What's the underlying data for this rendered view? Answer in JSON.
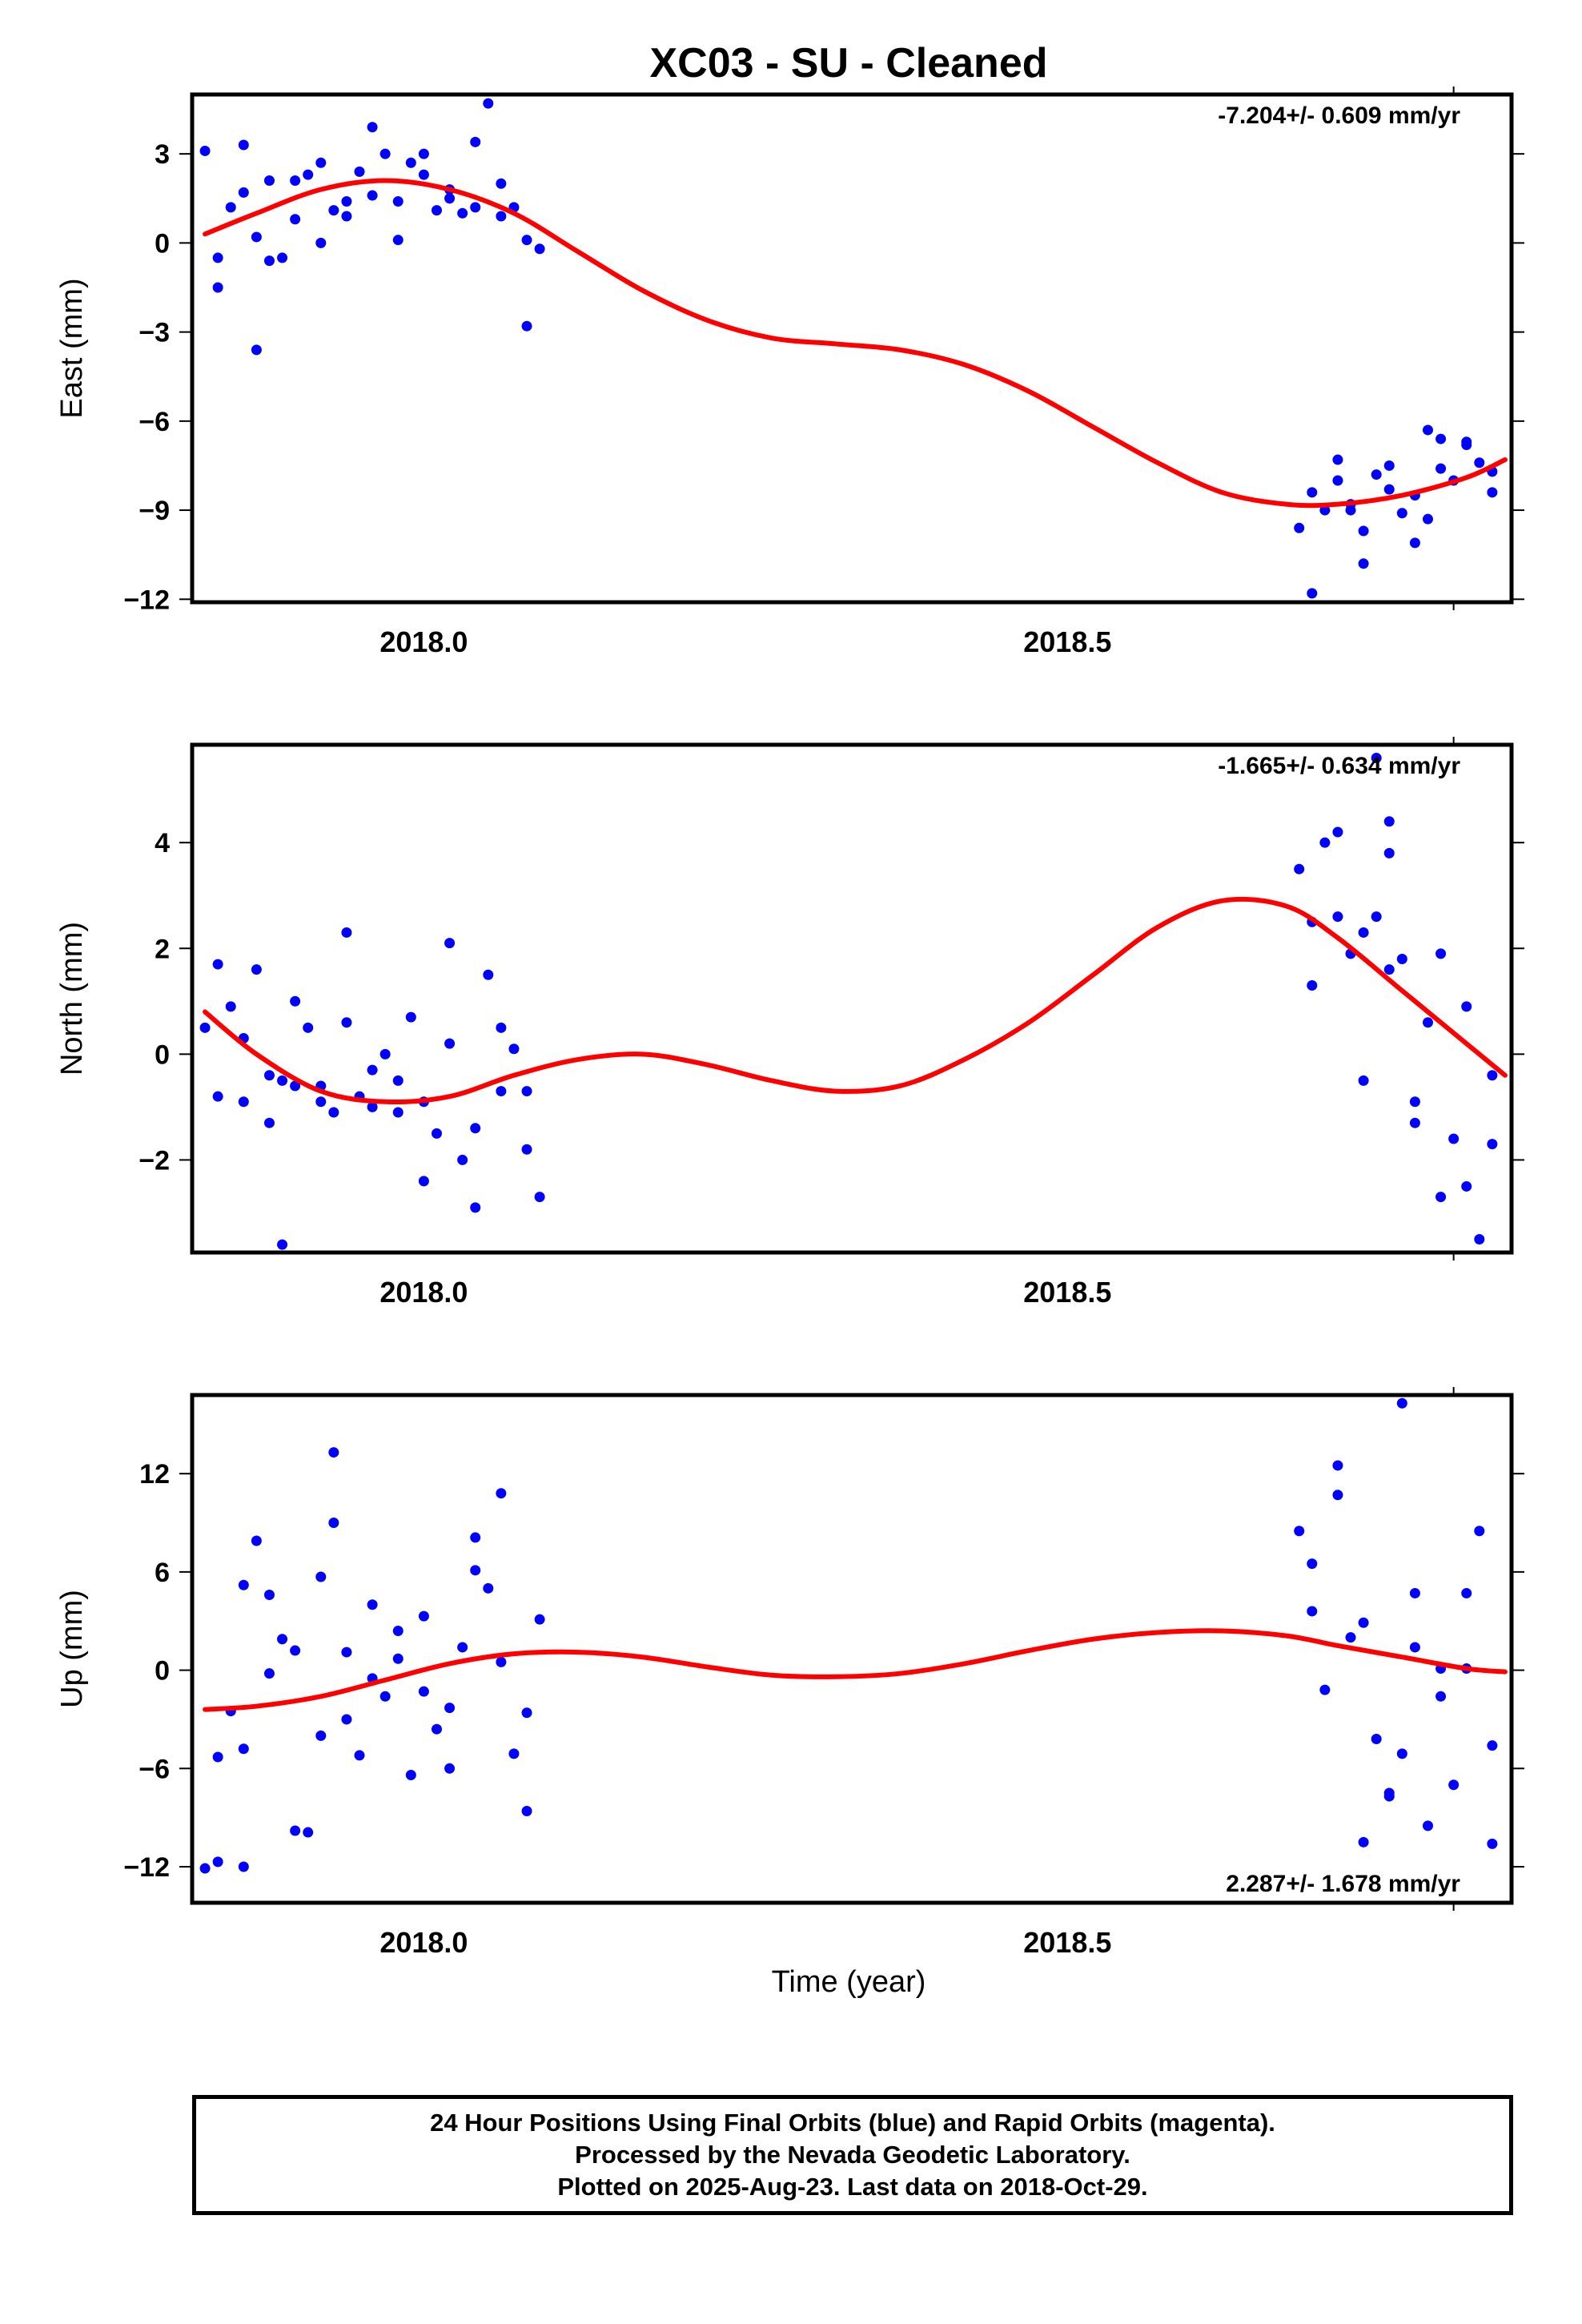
{
  "title": "XC03  - SU - Cleaned",
  "xlabel": "Time (year)",
  "colors": {
    "final_orbit": "#0000ff",
    "rapid_orbit": "#ff00ff",
    "model": "#ff0000",
    "axis": "#000000"
  },
  "caption": [
    "24 Hour Positions Using Final Orbits (blue) and Rapid Orbits (magenta).",
    "Processed by the Nevada Geodetic Laboratory.",
    "Plotted on 2025-Aug-23. Last data on 2018-Oct-29."
  ],
  "chart_data": [
    {
      "type": "scatter",
      "ylabel": "East (mm)",
      "rate_label": "-7.204+/- 0.609 mm/yr",
      "rate_position": "top-right",
      "xlim": [
        2017.82,
        2018.845
      ],
      "ylim": [
        -12.1,
        5.0
      ],
      "xticks": [
        2018.0,
        2018.5
      ],
      "xtick_labels": [
        "2018.0",
        "2018.5"
      ],
      "yticks": [
        -12,
        -9,
        -6,
        -3,
        0,
        3
      ],
      "ytick_labels": [
        "−12",
        "−9",
        "−6",
        "−3",
        "0",
        "3"
      ],
      "grid": false,
      "series": [
        {
          "role": "final",
          "x": [
            2017.83,
            2017.84,
            2017.85,
            2017.86,
            2017.87,
            2017.88,
            2017.89,
            2017.9,
            2017.91,
            2017.92,
            2017.93,
            2017.94,
            2017.95,
            2017.96,
            2017.97,
            2017.98,
            2017.99,
            2018.0,
            2018.01,
            2018.02,
            2018.03,
            2018.04,
            2018.05,
            2018.06,
            2018.07,
            2018.08,
            2018.09,
            2017.84,
            2017.86,
            2017.88,
            2017.9,
            2017.92,
            2017.94,
            2017.96,
            2017.98,
            2018.0,
            2018.02,
            2018.04,
            2018.06,
            2018.08,
            2018.68,
            2018.69,
            2018.7,
            2018.71,
            2018.72,
            2018.73,
            2018.74,
            2018.75,
            2018.76,
            2018.77,
            2018.78,
            2018.79,
            2018.8,
            2018.81,
            2018.82,
            2018.83,
            2018.69,
            2018.71,
            2018.73,
            2018.75,
            2018.77,
            2018.79,
            2018.81,
            2018.83,
            2017.87,
            2018.72,
            2018.78
          ],
          "y": [
            3.1,
            -0.5,
            1.2,
            3.3,
            0.2,
            2.1,
            -0.5,
            0.8,
            2.3,
            2.7,
            1.1,
            0.9,
            2.4,
            1.6,
            3.0,
            1.4,
            2.7,
            2.3,
            1.1,
            1.5,
            1.0,
            3.4,
            4.7,
            2.0,
            1.2,
            0.1,
            -0.2,
            -1.5,
            1.7,
            -0.6,
            2.1,
            0.0,
            1.4,
            3.9,
            0.1,
            3.0,
            1.8,
            1.2,
            0.9,
            -2.8,
            -9.6,
            -8.4,
            -9.0,
            -8.0,
            -8.8,
            -9.7,
            -7.8,
            -8.3,
            -9.1,
            -8.5,
            -9.3,
            -7.6,
            -8.0,
            -6.8,
            -7.4,
            -8.4,
            -11.8,
            -7.3,
            -10.8,
            -7.5,
            -10.1,
            -6.6,
            -6.7,
            -7.7,
            -3.6,
            -9.0,
            -6.3
          ]
        },
        {
          "role": "model",
          "x": [
            2017.83,
            2017.87,
            2017.92,
            2017.97,
            2018.02,
            2018.07,
            2018.12,
            2018.17,
            2018.22,
            2018.27,
            2018.32,
            2018.37,
            2018.42,
            2018.47,
            2018.52,
            2018.57,
            2018.62,
            2018.67,
            2018.71,
            2018.76,
            2018.81,
            2018.84
          ],
          "y": [
            0.3,
            1.0,
            1.8,
            2.1,
            1.8,
            1.0,
            -0.3,
            -1.6,
            -2.6,
            -3.2,
            -3.4,
            -3.6,
            -4.1,
            -5.0,
            -6.2,
            -7.4,
            -8.4,
            -8.8,
            -8.8,
            -8.5,
            -7.9,
            -7.3
          ]
        }
      ]
    },
    {
      "type": "scatter",
      "ylabel": "North (mm)",
      "rate_label": "-1.665+/- 0.634 mm/yr",
      "rate_position": "top-right",
      "xlim": [
        2017.82,
        2018.845
      ],
      "ylim": [
        -3.75,
        5.85
      ],
      "xticks": [
        2018.0,
        2018.5
      ],
      "xtick_labels": [
        "2018.0",
        "2018.5"
      ],
      "yticks": [
        -2,
        0,
        2,
        4
      ],
      "ytick_labels": [
        "−2",
        "0",
        "2",
        "4"
      ],
      "grid": false,
      "series": [
        {
          "role": "final",
          "x": [
            2017.83,
            2017.84,
            2017.85,
            2017.86,
            2017.87,
            2017.88,
            2017.89,
            2017.9,
            2017.91,
            2017.92,
            2017.93,
            2017.94,
            2017.95,
            2017.96,
            2017.97,
            2017.98,
            2017.99,
            2018.0,
            2018.01,
            2018.02,
            2018.03,
            2018.04,
            2018.05,
            2018.06,
            2018.07,
            2018.08,
            2018.09,
            2017.84,
            2017.86,
            2017.88,
            2017.9,
            2017.92,
            2017.94,
            2017.96,
            2017.98,
            2018.0,
            2018.02,
            2018.04,
            2018.06,
            2018.08,
            2018.68,
            2018.69,
            2018.7,
            2018.71,
            2018.72,
            2018.73,
            2018.74,
            2018.75,
            2018.76,
            2018.77,
            2018.78,
            2018.79,
            2018.8,
            2018.81,
            2018.82,
            2018.83,
            2018.69,
            2018.71,
            2018.73,
            2018.75,
            2018.77,
            2018.79,
            2018.81,
            2018.83,
            2017.89,
            2018.74,
            2018.75
          ],
          "y": [
            0.5,
            1.7,
            0.9,
            0.3,
            1.6,
            -0.4,
            -0.5,
            -0.6,
            0.5,
            -0.9,
            -1.1,
            0.6,
            -0.8,
            -0.3,
            0.0,
            -1.1,
            0.7,
            -2.4,
            -1.5,
            0.2,
            -2.0,
            -2.9,
            1.5,
            -0.7,
            0.1,
            -1.8,
            -2.7,
            -0.8,
            -0.9,
            -1.3,
            1.0,
            -0.6,
            2.3,
            -1.0,
            -0.5,
            -0.9,
            2.1,
            -1.4,
            0.5,
            -0.7,
            3.5,
            2.5,
            4.0,
            2.6,
            1.9,
            -0.5,
            2.6,
            1.6,
            1.8,
            -0.9,
            0.6,
            1.9,
            -1.6,
            0.9,
            -3.5,
            -1.7,
            1.3,
            4.2,
            2.3,
            3.8,
            -1.3,
            -2.7,
            -2.5,
            -0.4,
            -3.6,
            5.6,
            4.4
          ]
        },
        {
          "role": "model",
          "x": [
            2017.83,
            2017.87,
            2017.92,
            2017.97,
            2018.02,
            2018.07,
            2018.12,
            2018.17,
            2018.22,
            2018.27,
            2018.32,
            2018.37,
            2018.42,
            2018.47,
            2018.52,
            2018.57,
            2018.62,
            2018.67,
            2018.71,
            2018.76,
            2018.81,
            2018.84
          ],
          "y": [
            0.8,
            0.0,
            -0.7,
            -0.9,
            -0.8,
            -0.4,
            -0.1,
            0.0,
            -0.2,
            -0.5,
            -0.7,
            -0.6,
            -0.1,
            0.6,
            1.5,
            2.4,
            2.9,
            2.8,
            2.2,
            1.2,
            0.2,
            -0.4
          ]
        }
      ]
    },
    {
      "type": "scatter",
      "ylabel": "Up (mm)",
      "rate_label": "2.287+/- 1.678 mm/yr",
      "rate_position": "bottom-right",
      "xlim": [
        2017.82,
        2018.845
      ],
      "ylim": [
        -14.2,
        16.8
      ],
      "xticks": [
        2018.0,
        2018.5
      ],
      "xtick_labels": [
        "2018.0",
        "2018.5"
      ],
      "yticks": [
        -12,
        -6,
        0,
        6,
        12
      ],
      "ytick_labels": [
        "−12",
        "−6",
        "0",
        "6",
        "12"
      ],
      "grid": false,
      "series": [
        {
          "role": "final",
          "x": [
            2017.83,
            2017.84,
            2017.85,
            2017.86,
            2017.87,
            2017.88,
            2017.89,
            2017.9,
            2017.91,
            2017.92,
            2017.93,
            2017.94,
            2017.95,
            2017.96,
            2017.97,
            2017.98,
            2017.99,
            2018.0,
            2018.01,
            2018.02,
            2018.03,
            2018.04,
            2018.05,
            2018.06,
            2018.07,
            2018.08,
            2018.09,
            2017.84,
            2017.86,
            2017.88,
            2017.9,
            2017.92,
            2017.94,
            2017.96,
            2017.98,
            2018.0,
            2018.02,
            2018.04,
            2018.06,
            2018.08,
            2018.68,
            2018.69,
            2018.7,
            2018.71,
            2018.72,
            2018.73,
            2018.74,
            2018.75,
            2018.76,
            2018.77,
            2018.78,
            2018.79,
            2018.8,
            2018.81,
            2018.82,
            2018.83,
            2018.69,
            2018.71,
            2018.73,
            2018.75,
            2018.77,
            2018.79,
            2018.81,
            2018.83,
            2017.86,
            2017.93,
            2018.76
          ],
          "y": [
            -12.1,
            -5.3,
            -2.5,
            -4.8,
            7.9,
            -0.2,
            1.9,
            1.2,
            -9.9,
            -4.0,
            9.0,
            1.1,
            -5.2,
            -0.5,
            -1.6,
            2.4,
            -6.4,
            3.3,
            -3.6,
            -6.0,
            1.4,
            6.1,
            5.0,
            10.8,
            -5.1,
            -8.6,
            3.1,
            -11.7,
            5.2,
            4.6,
            -9.8,
            5.7,
            -3.0,
            4.0,
            0.7,
            -1.3,
            -2.3,
            8.1,
            0.5,
            -2.6,
            8.5,
            3.6,
            -1.2,
            10.7,
            2.0,
            2.9,
            -4.2,
            -7.5,
            -5.1,
            4.7,
            -9.5,
            0.1,
            -7.0,
            0.1,
            8.5,
            -4.6,
            6.5,
            12.5,
            -10.5,
            -7.7,
            1.4,
            -1.6,
            4.7,
            -10.6,
            -12.0,
            13.3,
            16.3
          ]
        },
        {
          "role": "model",
          "x": [
            2017.83,
            2017.87,
            2017.92,
            2017.97,
            2018.02,
            2018.07,
            2018.12,
            2018.17,
            2018.22,
            2018.27,
            2018.32,
            2018.37,
            2018.42,
            2018.47,
            2018.52,
            2018.57,
            2018.62,
            2018.67,
            2018.71,
            2018.76,
            2018.81,
            2018.84
          ],
          "y": [
            -2.4,
            -2.2,
            -1.6,
            -0.6,
            0.4,
            1.0,
            1.1,
            0.8,
            0.2,
            -0.3,
            -0.4,
            -0.2,
            0.4,
            1.2,
            1.9,
            2.3,
            2.4,
            2.1,
            1.5,
            0.8,
            0.1,
            -0.1
          ]
        }
      ]
    }
  ]
}
